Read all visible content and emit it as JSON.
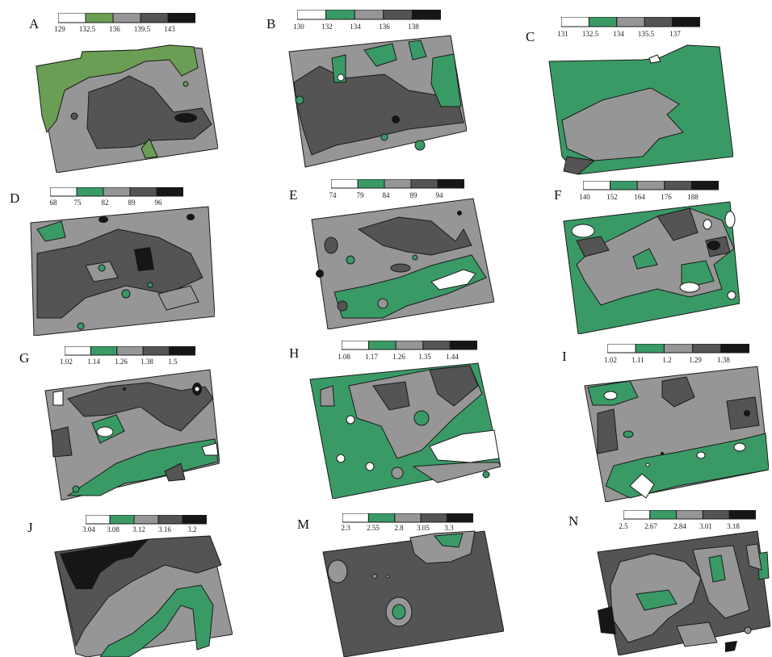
{
  "palette": {
    "white": "#ffffff",
    "green": "#3a9a66",
    "light_gray": "#969696",
    "dark_gray": "#545454",
    "black": "#161616",
    "outline": "#1a1a1a"
  },
  "panels": [
    {
      "label": "A",
      "ticks": [
        "129",
        "132.5",
        "136",
        "139.5",
        "143"
      ],
      "legend_fill": [
        "white",
        "olive_green",
        "light_gray",
        "dark_gray",
        "black"
      ],
      "olive": "#6b9e55"
    },
    {
      "label": "B",
      "ticks": [
        "130",
        "132",
        "134",
        "136",
        "138"
      ],
      "legend_fill": [
        "white",
        "green",
        "light_gray",
        "dark_gray",
        "black"
      ]
    },
    {
      "label": "C",
      "ticks": [
        "131",
        "132.5",
        "134",
        "135.5",
        "137"
      ],
      "legend_fill": [
        "white",
        "green",
        "light_gray",
        "dark_gray",
        "black"
      ]
    },
    {
      "label": "D",
      "ticks": [
        "68",
        "75",
        "82",
        "89",
        "96"
      ],
      "legend_fill": [
        "white",
        "green",
        "light_gray",
        "dark_gray",
        "black"
      ]
    },
    {
      "label": "E",
      "ticks": [
        "74",
        "79",
        "84",
        "89",
        "94"
      ],
      "legend_fill": [
        "white",
        "green",
        "light_gray",
        "dark_gray",
        "black"
      ]
    },
    {
      "label": "F",
      "ticks": [
        "140",
        "152",
        "164",
        "176",
        "188"
      ],
      "legend_fill": [
        "white",
        "green",
        "light_gray",
        "dark_gray",
        "black"
      ]
    },
    {
      "label": "G",
      "ticks": [
        "1.02",
        "1.14",
        "1.26",
        "1.38",
        "1.5"
      ],
      "legend_fill": [
        "white",
        "green",
        "light_gray",
        "dark_gray",
        "black"
      ]
    },
    {
      "label": "H",
      "ticks": [
        "1.08",
        "1.17",
        "1.26",
        "1.35",
        "1.44"
      ],
      "legend_fill": [
        "white",
        "green",
        "light_gray",
        "dark_gray",
        "black"
      ]
    },
    {
      "label": "I",
      "ticks": [
        "1.02",
        "1.11",
        "1.2",
        "1.29",
        "1.38"
      ],
      "legend_fill": [
        "white",
        "green",
        "light_gray",
        "dark_gray",
        "black"
      ]
    },
    {
      "label": "J",
      "ticks": [
        "3.04",
        "3.08",
        "3.12",
        "3.16",
        "3.2"
      ],
      "legend_fill": [
        "white",
        "green",
        "light_gray",
        "dark_gray",
        "black"
      ]
    },
    {
      "label": "M",
      "ticks": [
        "2.3",
        "2.55",
        "2.8",
        "3.05",
        "3.3"
      ],
      "legend_fill": [
        "white",
        "green",
        "light_gray",
        "dark_gray",
        "black"
      ]
    },
    {
      "label": "N",
      "ticks": [
        "2.5",
        "2.67",
        "2.84",
        "3.01",
        "3.18"
      ],
      "legend_fill": [
        "white",
        "green",
        "light_gray",
        "dark_gray",
        "black"
      ]
    }
  ]
}
